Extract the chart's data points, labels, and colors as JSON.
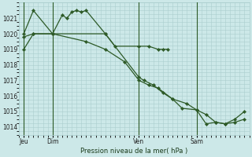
{
  "bg_color": "#cce8e8",
  "grid_color": "#aacece",
  "line_color": "#2d5a27",
  "xlabel": "Pression niveau de la mer( hPa )",
  "ylim": [
    1013.5,
    1022.0
  ],
  "yticks": [
    1014,
    1015,
    1016,
    1017,
    1018,
    1019,
    1020,
    1021
  ],
  "xtick_labels": [
    "Jeu",
    "Dim",
    "Ven",
    "Sam"
  ],
  "xtick_positions": [
    0.5,
    3.5,
    12.5,
    18.5
  ],
  "vline_positions": [
    0.5,
    3.5,
    12.5,
    18.5
  ],
  "xlim": [
    0,
    24
  ],
  "line1_x": [
    0.5,
    1.5,
    3.5,
    4.5,
    5.0,
    5.5,
    6.0,
    6.5,
    7.0,
    9.0,
    10.0,
    12.5,
    13.5,
    14.5,
    15.0,
    15.5
  ],
  "line1_y": [
    1020.0,
    1021.5,
    1020.0,
    1021.2,
    1021.0,
    1021.4,
    1021.5,
    1021.4,
    1021.5,
    1020.0,
    1019.2,
    1019.2,
    1019.2,
    1019.0,
    1019.0,
    1019.0
  ],
  "line2_x": [
    0.5,
    1.5,
    3.5,
    9.0,
    12.5,
    13.0,
    14.0,
    15.0,
    16.0,
    17.0,
    18.5,
    19.5,
    20.5,
    21.5,
    22.5,
    23.5
  ],
  "line2_y": [
    1019.0,
    1020.0,
    1020.0,
    1020.0,
    1017.2,
    1017.0,
    1016.7,
    1016.2,
    1015.8,
    1015.2,
    1015.1,
    1014.2,
    1014.3,
    1014.2,
    1014.5,
    1015.0
  ],
  "line3_x": [
    0.5,
    1.5,
    3.5,
    7.0,
    9.0,
    11.0,
    12.5,
    13.5,
    14.5,
    16.0,
    17.5,
    18.5,
    19.5,
    20.5,
    21.5,
    22.5,
    23.5
  ],
  "line3_y": [
    1019.8,
    1020.0,
    1020.0,
    1019.5,
    1019.0,
    1018.2,
    1017.0,
    1016.7,
    1016.5,
    1015.8,
    1015.5,
    1015.1,
    1014.8,
    1014.3,
    1014.2,
    1014.3,
    1014.5
  ]
}
